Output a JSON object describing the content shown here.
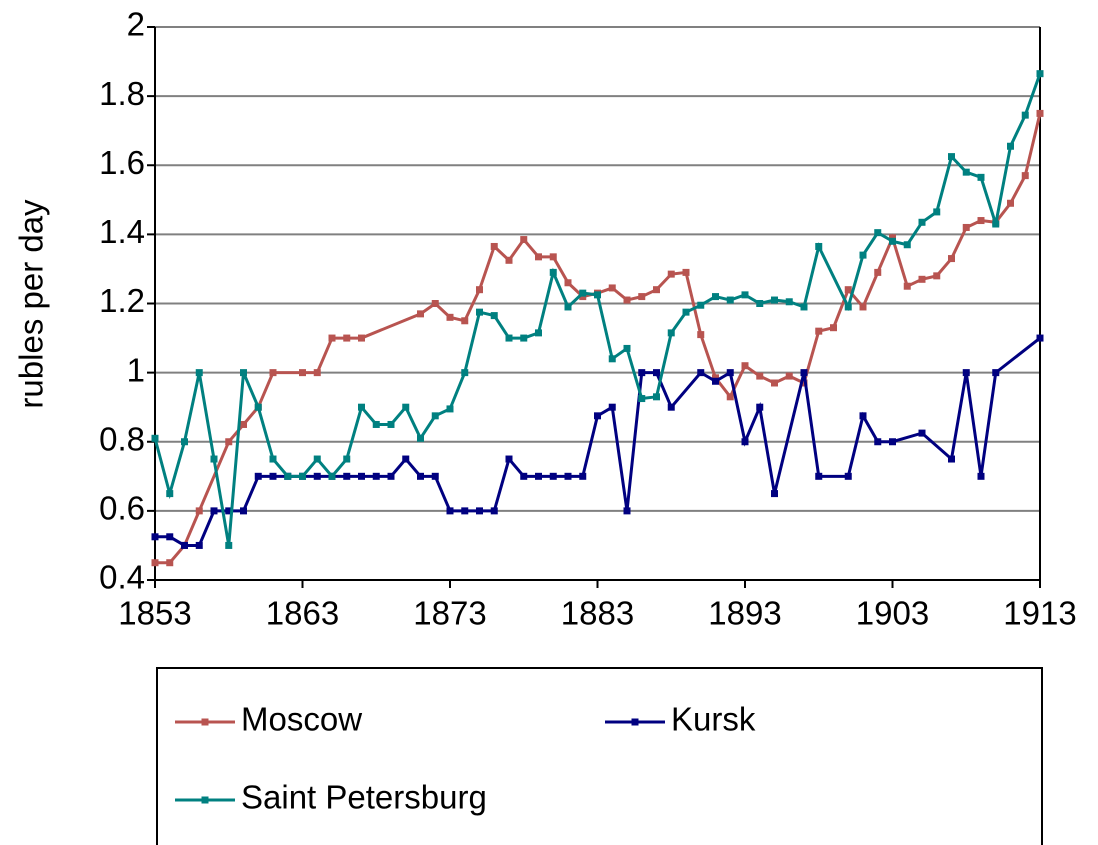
{
  "chart_data": {
    "type": "line",
    "ylabel": "rubles per day",
    "xlim": [
      1853,
      1913
    ],
    "xticks": [
      1853,
      1863,
      1873,
      1883,
      1893,
      1903,
      1913
    ],
    "ylim": [
      0.4,
      2
    ],
    "yticks": [
      0.4,
      0.6,
      0.8,
      1,
      1.2,
      1.4,
      1.6,
      1.8,
      2
    ],
    "grid": true,
    "series": [
      {
        "name": "Moscow",
        "color": "#b85450",
        "x": [
          1853,
          1854,
          1855,
          1856,
          1858,
          1859,
          1860,
          1861,
          1863,
          1864,
          1865,
          1866,
          1867,
          1871,
          1872,
          1873,
          1874,
          1875,
          1876,
          1877,
          1878,
          1879,
          1880,
          1881,
          1882,
          1883,
          1884,
          1885,
          1886,
          1887,
          1888,
          1889,
          1890,
          1891,
          1892,
          1893,
          1894,
          1895,
          1896,
          1897,
          1898,
          1899,
          1900,
          1901,
          1902,
          1903,
          1904,
          1905,
          1906,
          1907,
          1908,
          1909,
          1910,
          1911,
          1912,
          1913
        ],
        "values": [
          0.45,
          0.45,
          0.5,
          0.6,
          0.8,
          0.85,
          0.9,
          1.0,
          1.0,
          1.0,
          1.1,
          1.1,
          1.1,
          1.17,
          1.2,
          1.16,
          1.15,
          1.24,
          1.365,
          1.325,
          1.385,
          1.335,
          1.335,
          1.26,
          1.22,
          1.23,
          1.245,
          1.21,
          1.22,
          1.24,
          1.285,
          1.29,
          1.11,
          0.985,
          0.93,
          1.02,
          0.99,
          0.97,
          0.99,
          0.97,
          1.12,
          1.13,
          1.24,
          1.19,
          1.29,
          1.39,
          1.25,
          1.27,
          1.28,
          1.33,
          1.42,
          1.44,
          1.435,
          1.49,
          1.57,
          1.75
        ]
      },
      {
        "name": "Kursk",
        "color": "#000080",
        "x": [
          1853,
          1854,
          1855,
          1856,
          1857,
          1858,
          1859,
          1860,
          1861,
          1862,
          1863,
          1864,
          1865,
          1866,
          1867,
          1868,
          1869,
          1870,
          1871,
          1872,
          1873,
          1874,
          1875,
          1876,
          1877,
          1878,
          1879,
          1880,
          1881,
          1882,
          1883,
          1884,
          1885,
          1886,
          1887,
          1888,
          1890,
          1891,
          1892,
          1893,
          1894,
          1895,
          1897,
          1898,
          1900,
          1901,
          1902,
          1903,
          1905,
          1907,
          1908,
          1909,
          1910,
          1913
        ],
        "values": [
          0.525,
          0.525,
          0.5,
          0.5,
          0.6,
          0.6,
          0.6,
          0.7,
          0.7,
          0.7,
          0.7,
          0.7,
          0.7,
          0.7,
          0.7,
          0.7,
          0.7,
          0.75,
          0.7,
          0.7,
          0.6,
          0.6,
          0.6,
          0.6,
          0.75,
          0.7,
          0.7,
          0.7,
          0.7,
          0.7,
          0.875,
          0.9,
          0.6,
          1.0,
          1.0,
          0.9,
          1.0,
          0.975,
          1.0,
          0.8,
          0.9,
          0.65,
          1.0,
          0.7,
          0.7,
          0.875,
          0.8,
          0.8,
          0.825,
          0.75,
          1.0,
          0.7,
          1.0,
          1.1
        ]
      },
      {
        "name": "Saint Petersburg",
        "color": "#008080",
        "x": [
          1853,
          1854,
          1855,
          1856,
          1857,
          1858,
          1859,
          1860,
          1861,
          1862,
          1863,
          1864,
          1865,
          1866,
          1867,
          1868,
          1869,
          1870,
          1871,
          1872,
          1873,
          1874,
          1875,
          1876,
          1877,
          1878,
          1879,
          1880,
          1881,
          1882,
          1883,
          1884,
          1885,
          1886,
          1887,
          1888,
          1889,
          1890,
          1891,
          1892,
          1893,
          1894,
          1895,
          1896,
          1897,
          1898,
          1900,
          1901,
          1902,
          1903,
          1904,
          1905,
          1906,
          1907,
          1908,
          1909,
          1910,
          1911,
          1912,
          1913
        ],
        "values": [
          0.81,
          0.65,
          0.8,
          1.0,
          0.75,
          0.5,
          1.0,
          0.9,
          0.75,
          0.7,
          0.7,
          0.75,
          0.7,
          0.75,
          0.9,
          0.85,
          0.85,
          0.9,
          0.81,
          0.875,
          0.895,
          1.0,
          1.175,
          1.165,
          1.1,
          1.1,
          1.115,
          1.29,
          1.19,
          1.23,
          1.225,
          1.04,
          1.07,
          0.925,
          0.93,
          1.115,
          1.175,
          1.195,
          1.22,
          1.21,
          1.225,
          1.2,
          1.21,
          1.205,
          1.19,
          1.365,
          1.19,
          1.34,
          1.405,
          1.38,
          1.37,
          1.435,
          1.465,
          1.625,
          1.58,
          1.565,
          1.43,
          1.655,
          1.745,
          1.865
        ]
      }
    ]
  }
}
